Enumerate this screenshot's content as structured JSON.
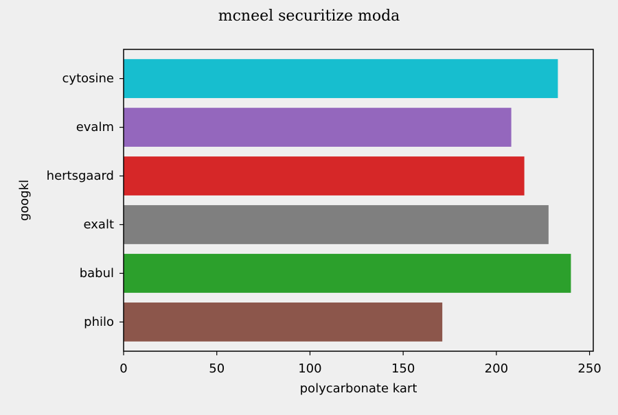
{
  "chart_data": {
    "type": "bar",
    "orientation": "horizontal",
    "title": "mcneel securitize moda",
    "xlabel": "polycarbonate kart",
    "ylabel": "googkl",
    "categories": [
      "cytosine",
      "evalm",
      "hertsgaard",
      "exalt",
      "babul",
      "philo"
    ],
    "values": [
      233,
      208,
      215,
      228,
      240,
      171
    ],
    "colors": [
      "#17becf",
      "#9467bd",
      "#d62728",
      "#7f7f7f",
      "#2ca02c",
      "#8c564b"
    ],
    "xlim": [
      0,
      252
    ],
    "xticks": [
      0,
      50,
      100,
      150,
      200,
      250
    ],
    "grid": false,
    "legend": "none"
  }
}
